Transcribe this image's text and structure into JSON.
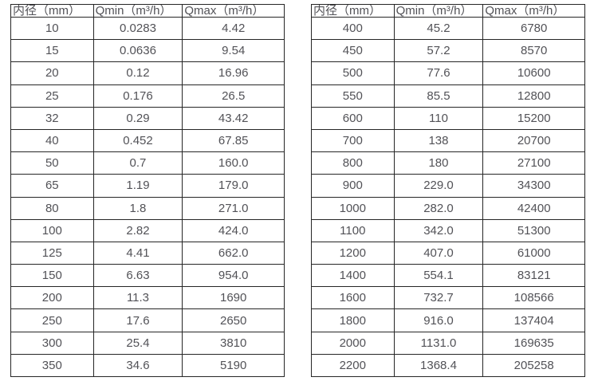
{
  "colors": {
    "background": "#ffffff",
    "border": "#262626",
    "text": "#525257"
  },
  "table_left": {
    "headers": [
      "内径（mm）",
      "Qmin（m³/h）",
      "Qmax（m³/h）"
    ],
    "rows": [
      [
        "10",
        "0.0283",
        "4.42"
      ],
      [
        "15",
        "0.0636",
        "9.54"
      ],
      [
        "20",
        "0.12",
        "16.96"
      ],
      [
        "25",
        "0.176",
        "26.5"
      ],
      [
        "32",
        "0.29",
        "43.42"
      ],
      [
        "40",
        "0.452",
        "67.85"
      ],
      [
        "50",
        "0.7",
        "160.0"
      ],
      [
        "65",
        "1.19",
        "179.0"
      ],
      [
        "80",
        "1.8",
        "271.0"
      ],
      [
        "100",
        "2.82",
        "424.0"
      ],
      [
        "125",
        "4.41",
        "662.0"
      ],
      [
        "150",
        "6.63",
        "954.0"
      ],
      [
        "200",
        "11.3",
        "1690"
      ],
      [
        "250",
        "17.6",
        "2650"
      ],
      [
        "300",
        "25.4",
        "3810"
      ],
      [
        "350",
        "34.6",
        "5190"
      ]
    ]
  },
  "table_right": {
    "headers": [
      "内径（mm）",
      "Qmin（m³/h）",
      "Qmax（m³/h）"
    ],
    "rows": [
      [
        "400",
        "45.2",
        "6780"
      ],
      [
        "450",
        "57.2",
        "8570"
      ],
      [
        "500",
        "77.6",
        "10600"
      ],
      [
        "550",
        "85.5",
        "12800"
      ],
      [
        "600",
        "110",
        "15200"
      ],
      [
        "700",
        "138",
        "20700"
      ],
      [
        "800",
        "180",
        "27100"
      ],
      [
        "900",
        "229.0",
        "34300"
      ],
      [
        "1000",
        "282.0",
        "42400"
      ],
      [
        "1100",
        "342.0",
        "51300"
      ],
      [
        "1200",
        "407.0",
        "61000"
      ],
      [
        "1400",
        "554.1",
        "83121"
      ],
      [
        "1600",
        "732.7",
        "108566"
      ],
      [
        "1800",
        "916.0",
        "137404"
      ],
      [
        "2000",
        "1131.0",
        "169635"
      ],
      [
        "2200",
        "1368.4",
        "205258"
      ]
    ]
  }
}
